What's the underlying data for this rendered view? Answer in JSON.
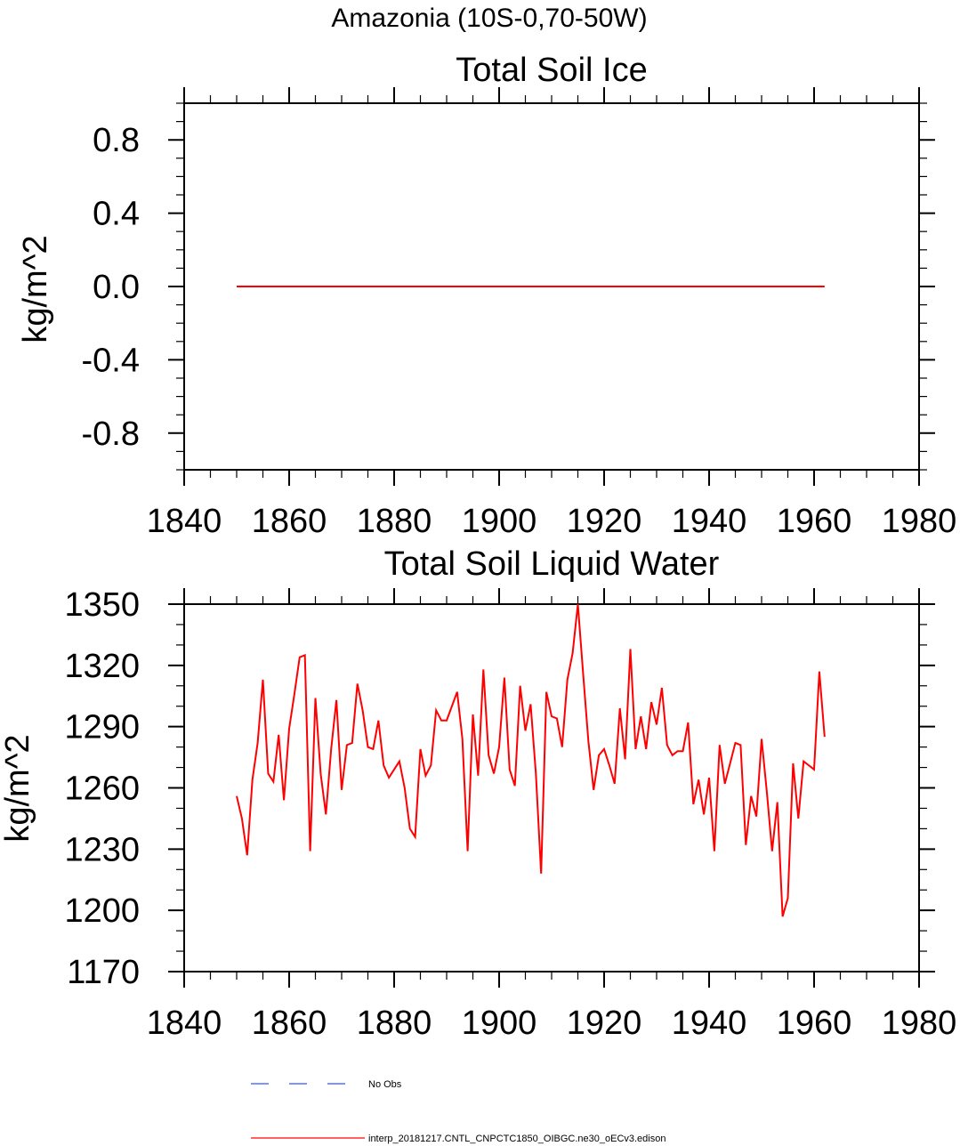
{
  "figure": {
    "supertitle": "Amazonia (10S-0,70-50W)"
  },
  "colors": {
    "series": "#ff0000",
    "noobs": "#3355ff",
    "axes": "#000000"
  },
  "chart_data": [
    {
      "type": "line",
      "title": "Total Soil Ice",
      "xlabel": "",
      "ylabel": "kg/m^2",
      "xlim": [
        1840,
        1980
      ],
      "ylim": [
        -1.0,
        1.0
      ],
      "xticks": [
        1840,
        1860,
        1880,
        1900,
        1920,
        1940,
        1960,
        1980
      ],
      "xtick_labels": [
        "1840",
        "1860",
        "1880",
        "1900",
        "1920",
        "1940",
        "1960",
        "1980"
      ],
      "yticks": [
        -0.8,
        -0.4,
        0.0,
        0.4,
        0.8
      ],
      "ytick_labels": [
        "-0.8",
        "-0.4",
        "0.0",
        "0.4",
        "0.8"
      ],
      "yminor_step": 0.1,
      "series": [
        {
          "name": "interp_20181217.CNTL_CNPCTC1850_OIBGC.ne30_oECv3.edison",
          "x": [
            1850,
            1962
          ],
          "values": [
            0.0,
            0.0
          ]
        }
      ]
    },
    {
      "type": "line",
      "title": "Total Soil Liquid Water",
      "xlabel": "",
      "ylabel": "kg/m^2",
      "xlim": [
        1840,
        1980
      ],
      "ylim": [
        1170,
        1350
      ],
      "xticks": [
        1840,
        1860,
        1880,
        1900,
        1920,
        1940,
        1960,
        1980
      ],
      "xtick_labels": [
        "1840",
        "1860",
        "1880",
        "1900",
        "1920",
        "1940",
        "1960",
        "1980"
      ],
      "yticks": [
        1170,
        1200,
        1230,
        1260,
        1290,
        1320,
        1350
      ],
      "ytick_labels": [
        "1170",
        "1200",
        "1230",
        "1260",
        "1290",
        "1320",
        "1350"
      ],
      "yminor_step": 10,
      "series": [
        {
          "name": "interp_20181217.CNTL_CNPCTC1850_OIBGC.ne30_oECv3.edison",
          "x_start": 1850,
          "x_step": 1,
          "values": [
            1256,
            1245,
            1227,
            1264,
            1282,
            1313,
            1267,
            1263,
            1286,
            1254,
            1289,
            1306,
            1324,
            1325,
            1229,
            1304,
            1267,
            1247,
            1279,
            1303,
            1259,
            1281,
            1282,
            1311,
            1298,
            1280,
            1279,
            1293,
            1271,
            1265,
            1269,
            1273,
            1260,
            1240,
            1236,
            1279,
            1266,
            1271,
            1298,
            1293,
            1293,
            1300,
            1307,
            1284,
            1229,
            1296,
            1266,
            1318,
            1276,
            1267,
            1280,
            1314,
            1269,
            1261,
            1310,
            1288,
            1301,
            1267,
            1218,
            1307,
            1295,
            1294,
            1280,
            1313,
            1326,
            1350,
            1316,
            1283,
            1259,
            1276,
            1279,
            1271,
            1262,
            1299,
            1274,
            1328,
            1279,
            1295,
            1279,
            1302,
            1291,
            1309,
            1281,
            1276,
            1278,
            1278,
            1292,
            1252,
            1264,
            1247,
            1265,
            1229,
            1281,
            1262,
            1272,
            1282,
            1281,
            1232,
            1256,
            1246,
            1284,
            1258,
            1229,
            1253,
            1197,
            1206,
            1272,
            1245,
            1273,
            1271,
            1269,
            1317,
            1285
          ]
        }
      ]
    }
  ],
  "legend": {
    "entries": [
      {
        "label": "No Obs",
        "style": "dashed",
        "color": "#3355ff"
      },
      {
        "label": "interp_20181217.CNTL_CNPCTC1850_OIBGC.ne30_oECv3.edison",
        "style": "solid",
        "color": "#ff0000"
      }
    ]
  }
}
